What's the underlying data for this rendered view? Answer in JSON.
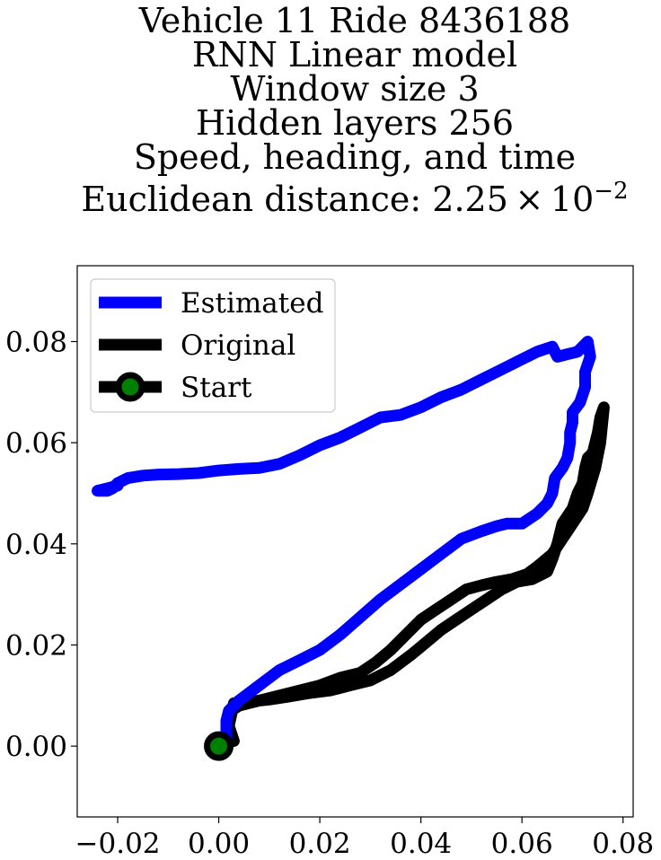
{
  "chart_data": {
    "type": "line",
    "title_lines": [
      "Vehicle 11 Ride 8436188",
      "RNN Linear model",
      "Window size 3",
      "Hidden layers 256",
      "Speed, heading, and time"
    ],
    "title_metric_prefix": "Euclidean distance: 2.25 × 10",
    "title_metric_exponent": "−2",
    "xlim": [
      -0.028,
      0.082
    ],
    "ylim": [
      -0.014,
      0.095
    ],
    "x_ticks": [
      -0.02,
      0.0,
      0.02,
      0.04,
      0.06,
      0.08
    ],
    "x_tick_labels": [
      "−0.02",
      "0.00",
      "0.02",
      "0.04",
      "0.06",
      "0.08"
    ],
    "y_ticks": [
      0.0,
      0.02,
      0.04,
      0.06,
      0.08
    ],
    "y_tick_labels": [
      "0.00",
      "0.02",
      "0.04",
      "0.06",
      "0.08"
    ],
    "grid": false,
    "legend_position": "upper-left",
    "series": [
      {
        "name": "Estimated",
        "color": "#0000ff",
        "points": [
          [
            0.0,
            0.0
          ],
          [
            0.0015,
            0.001
          ],
          [
            0.0015,
            0.005
          ],
          [
            0.002,
            0.007
          ],
          [
            0.004,
            0.009
          ],
          [
            0.008,
            0.012
          ],
          [
            0.012,
            0.015
          ],
          [
            0.016,
            0.017
          ],
          [
            0.02,
            0.019
          ],
          [
            0.024,
            0.022
          ],
          [
            0.028,
            0.0255
          ],
          [
            0.032,
            0.029
          ],
          [
            0.036,
            0.032
          ],
          [
            0.04,
            0.035
          ],
          [
            0.044,
            0.038
          ],
          [
            0.048,
            0.041
          ],
          [
            0.052,
            0.0425
          ],
          [
            0.055,
            0.0435
          ],
          [
            0.057,
            0.044
          ],
          [
            0.06,
            0.044
          ],
          [
            0.063,
            0.046
          ],
          [
            0.065,
            0.048
          ],
          [
            0.066,
            0.05
          ],
          [
            0.0665,
            0.053
          ],
          [
            0.068,
            0.055
          ],
          [
            0.069,
            0.057
          ],
          [
            0.0695,
            0.06
          ],
          [
            0.0695,
            0.062
          ],
          [
            0.07,
            0.064
          ],
          [
            0.07,
            0.066
          ],
          [
            0.0715,
            0.068
          ],
          [
            0.0725,
            0.071
          ],
          [
            0.0725,
            0.074
          ],
          [
            0.0735,
            0.077
          ],
          [
            0.073,
            0.08
          ],
          [
            0.071,
            0.078
          ],
          [
            0.069,
            0.0775
          ],
          [
            0.067,
            0.077
          ],
          [
            0.066,
            0.079
          ],
          [
            0.063,
            0.078
          ],
          [
            0.06,
            0.0765
          ],
          [
            0.056,
            0.0745
          ],
          [
            0.052,
            0.0725
          ],
          [
            0.048,
            0.0705
          ],
          [
            0.044,
            0.069
          ],
          [
            0.04,
            0.067
          ],
          [
            0.036,
            0.0655
          ],
          [
            0.032,
            0.065
          ],
          [
            0.028,
            0.063
          ],
          [
            0.024,
            0.061
          ],
          [
            0.02,
            0.0595
          ],
          [
            0.016,
            0.0575
          ],
          [
            0.012,
            0.0558
          ],
          [
            0.008,
            0.055
          ],
          [
            0.004,
            0.0548
          ],
          [
            0.0,
            0.0545
          ],
          [
            -0.004,
            0.054
          ],
          [
            -0.008,
            0.0538
          ],
          [
            -0.012,
            0.0537
          ],
          [
            -0.015,
            0.0535
          ],
          [
            -0.018,
            0.053
          ],
          [
            -0.02,
            0.052
          ],
          [
            -0.021,
            0.051
          ],
          [
            -0.022,
            0.0505
          ],
          [
            -0.024,
            0.0505
          ],
          [
            -0.022,
            0.051
          ],
          [
            -0.02,
            0.0515
          ]
        ]
      },
      {
        "name": "Original",
        "color": "#000000",
        "points": [
          [
            0.0,
            0.0
          ],
          [
            0.0015,
            0.001
          ],
          [
            0.002,
            0.002
          ],
          [
            0.002,
            0.005
          ],
          [
            0.0025,
            0.007
          ],
          [
            0.004,
            0.008
          ],
          [
            0.008,
            0.009
          ],
          [
            0.012,
            0.01
          ],
          [
            0.016,
            0.011
          ],
          [
            0.02,
            0.012
          ],
          [
            0.024,
            0.0135
          ],
          [
            0.028,
            0.0145
          ],
          [
            0.031,
            0.0165
          ],
          [
            0.034,
            0.019
          ],
          [
            0.037,
            0.022
          ],
          [
            0.04,
            0.025
          ],
          [
            0.043,
            0.027
          ],
          [
            0.046,
            0.029
          ],
          [
            0.049,
            0.031
          ],
          [
            0.052,
            0.0318
          ],
          [
            0.055,
            0.0325
          ],
          [
            0.058,
            0.033
          ],
          [
            0.061,
            0.034
          ],
          [
            0.063,
            0.0355
          ],
          [
            0.066,
            0.038
          ],
          [
            0.068,
            0.041
          ],
          [
            0.07,
            0.044
          ],
          [
            0.072,
            0.047
          ],
          [
            0.073,
            0.05
          ],
          [
            0.0745,
            0.055
          ],
          [
            0.0755,
            0.06
          ],
          [
            0.0762,
            0.067
          ],
          [
            0.0755,
            0.065
          ],
          [
            0.075,
            0.062
          ],
          [
            0.074,
            0.058
          ],
          [
            0.073,
            0.057
          ],
          [
            0.0725,
            0.055
          ],
          [
            0.072,
            0.052
          ],
          [
            0.071,
            0.05
          ],
          [
            0.07,
            0.047
          ],
          [
            0.068,
            0.044
          ],
          [
            0.067,
            0.04
          ],
          [
            0.066,
            0.037
          ],
          [
            0.065,
            0.0345
          ],
          [
            0.062,
            0.033
          ],
          [
            0.059,
            0.0325
          ],
          [
            0.056,
            0.031
          ],
          [
            0.053,
            0.029
          ],
          [
            0.05,
            0.027
          ],
          [
            0.047,
            0.025
          ],
          [
            0.044,
            0.023
          ],
          [
            0.041,
            0.0205
          ],
          [
            0.038,
            0.018
          ],
          [
            0.034,
            0.015
          ],
          [
            0.03,
            0.013
          ],
          [
            0.026,
            0.012
          ],
          [
            0.022,
            0.011
          ],
          [
            0.018,
            0.0105
          ],
          [
            0.014,
            0.0098
          ],
          [
            0.01,
            0.0092
          ],
          [
            0.006,
            0.0088
          ],
          [
            0.003,
            0.0085
          ],
          [
            0.002,
            0.004
          ],
          [
            0.003,
            0.001
          ]
        ]
      }
    ],
    "start_point": [
      0.0,
      0.0
    ],
    "start_marker": {
      "edge_color": "#000000",
      "fill_color": "#008000"
    },
    "legend": [
      {
        "label": "Estimated",
        "color": "#0000ff",
        "marker": false
      },
      {
        "label": "Original",
        "color": "#000000",
        "marker": false
      },
      {
        "label": "Start",
        "color": "#000000",
        "marker": true
      }
    ]
  }
}
